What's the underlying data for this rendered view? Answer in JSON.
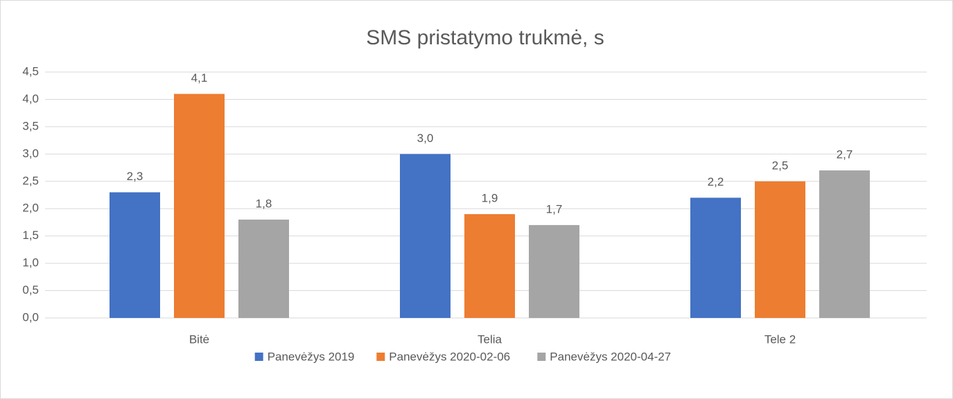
{
  "chart_data": {
    "type": "bar",
    "title": "SMS pristatymo trukmė, s",
    "categories": [
      "Bitė",
      "Telia",
      "Tele 2"
    ],
    "series": [
      {
        "name": "Panevėžys 2019",
        "color": "#4472c4",
        "values": [
          2.3,
          3.0,
          2.2
        ],
        "value_labels": [
          "2,3",
          "3,0",
          "2,2"
        ]
      },
      {
        "name": "Panevėžys 2020-02-06",
        "color": "#ed7d31",
        "values": [
          4.1,
          1.9,
          2.5
        ],
        "value_labels": [
          "4,1",
          "1,9",
          "2,5"
        ]
      },
      {
        "name": "Panevėžys 2020-04-27",
        "color": "#a5a5a5",
        "values": [
          1.8,
          1.7,
          2.7
        ],
        "value_labels": [
          "1,8",
          "1,7",
          "2,7"
        ]
      }
    ],
    "ylim": [
      0,
      4.5
    ],
    "yticks": [
      {
        "value": 0,
        "label": "0,0"
      },
      {
        "value": 0.5,
        "label": "0,5"
      },
      {
        "value": 1,
        "label": "1,0"
      },
      {
        "value": 1.5,
        "label": "1,5"
      },
      {
        "value": 2,
        "label": "2,0"
      },
      {
        "value": 2.5,
        "label": "2,5"
      },
      {
        "value": 3,
        "label": "3,0"
      },
      {
        "value": 3.5,
        "label": "3,5"
      },
      {
        "value": 4,
        "label": "4,0"
      },
      {
        "value": 4.5,
        "label": "4,5"
      }
    ],
    "grid": true,
    "legend": "bottom"
  }
}
